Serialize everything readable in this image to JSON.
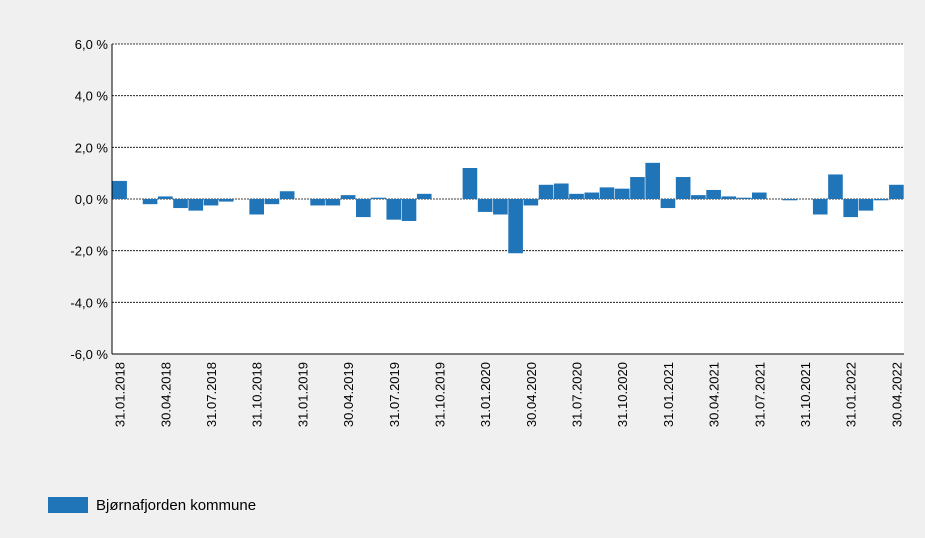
{
  "chart_data": {
    "type": "bar",
    "color": "#2074b8",
    "grid": true,
    "legend_position": "bottom-left",
    "series": [
      {
        "name": "Bjørnafjorden kommune",
        "color": "#2074b8",
        "values": [
          0.7,
          0,
          -0.2,
          0.1,
          -0.35,
          -0.45,
          -0.25,
          -0.1,
          0,
          -0.6,
          -0.2,
          0.3,
          0,
          -0.25,
          -0.25,
          0.15,
          -0.7,
          0.05,
          -0.8,
          -0.85,
          0.2,
          0,
          0,
          1.2,
          -0.5,
          -0.6,
          -2.1,
          -0.25,
          0.55,
          0.6,
          0.2,
          0.25,
          0.45,
          0.4,
          0.85,
          1.4,
          -0.35,
          0.85,
          0.15,
          0.35,
          0.1,
          0.05,
          0.25,
          0,
          -0.05,
          0,
          -0.6,
          0.95,
          -0.7,
          -0.45,
          -0.05,
          0.55
        ]
      }
    ],
    "categories": [
      "31.01.2018",
      null,
      null,
      "30.04.2018",
      null,
      null,
      "31.07.2018",
      null,
      null,
      "31.10.2018",
      null,
      null,
      "31.01.2019",
      null,
      null,
      "30.04.2019",
      null,
      null,
      "31.07.2019",
      null,
      null,
      "31.10.2019",
      null,
      null,
      "31.01.2020",
      null,
      null,
      "30.04.2020",
      null,
      null,
      "31.07.2020",
      null,
      null,
      "31.10.2020",
      null,
      null,
      "31.01.2021",
      null,
      null,
      "30.04.2021",
      null,
      null,
      "31.07.2021",
      null,
      null,
      "31.10.2021",
      null,
      null,
      "31.01.2022",
      null,
      null,
      "30.04.2022"
    ],
    "ylim": [
      -6,
      6
    ],
    "yticks": [
      {
        "value": -6,
        "label": "-6,0 %"
      },
      {
        "value": -4,
        "label": "-4,0 %"
      },
      {
        "value": -2,
        "label": "-2,0 %"
      },
      {
        "value": 0,
        "label": "0,0 %"
      },
      {
        "value": 2,
        "label": "2,0 %"
      },
      {
        "value": 4,
        "label": "4,0 %"
      },
      {
        "value": 6,
        "label": "6,0 %"
      }
    ]
  }
}
